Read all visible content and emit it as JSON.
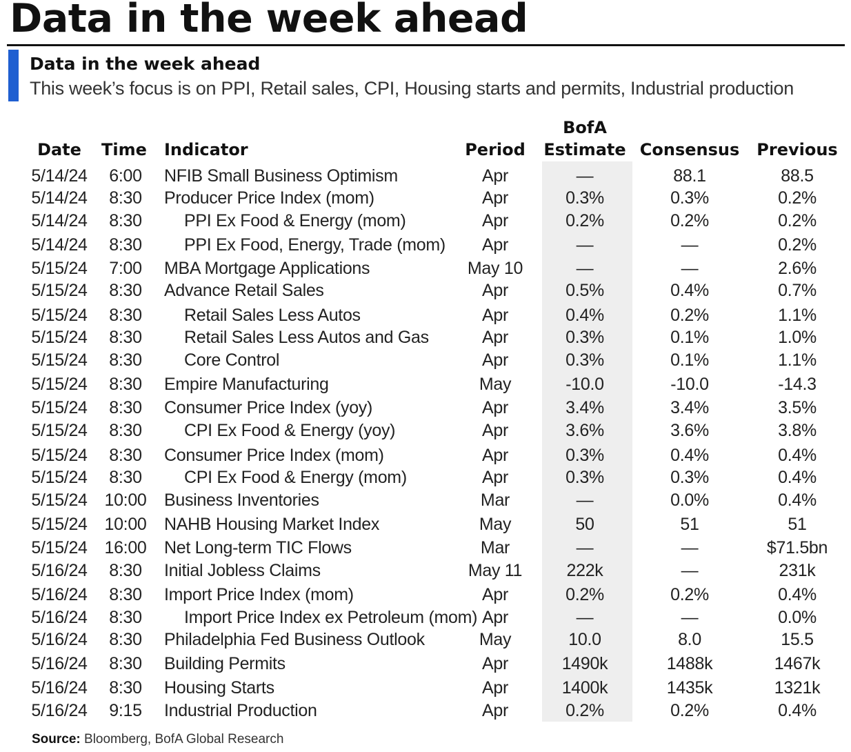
{
  "header": {
    "main_title": "Data in the week ahead",
    "sub_title": "Data in the week ahead",
    "description": "This week’s focus is on PPI, Retail sales, CPI, Housing starts and permits, Industrial production",
    "accent_color": "#1f5fd1"
  },
  "table": {
    "columns": {
      "date": "Date",
      "time": "Time",
      "indicator": "Indicator",
      "period": "Period",
      "bofa_top": "BofA",
      "bofa_bottom": "Estimate",
      "consensus": "Consensus",
      "previous": "Previous"
    },
    "rows": [
      {
        "date": "5/14/24",
        "time": "6:00",
        "indicator": "NFIB Small Business Optimism",
        "indent": false,
        "period": "Apr",
        "bofa": "—",
        "consensus": "88.1",
        "previous": "88.5"
      },
      {
        "date": "5/14/24",
        "time": "8:30",
        "indicator": "Producer Price Index (mom)",
        "indent": false,
        "period": "Apr",
        "bofa": "0.3%",
        "consensus": "0.3%",
        "previous": "0.2%"
      },
      {
        "date": "5/14/24",
        "time": "8:30",
        "indicator": "PPI Ex Food & Energy (mom)",
        "indent": true,
        "period": "Apr",
        "bofa": "0.2%",
        "consensus": "0.2%",
        "previous": "0.2%"
      },
      {
        "date": "5/14/24",
        "time": "8:30",
        "indicator": "PPI Ex Food, Energy, Trade (mom)",
        "indent": true,
        "period": "Apr",
        "bofa": "—",
        "consensus": "—",
        "previous": "0.2%"
      },
      {
        "date": "5/15/24",
        "time": "7:00",
        "indicator": "MBA Mortgage Applications",
        "indent": false,
        "period": "May 10",
        "bofa": "—",
        "consensus": "—",
        "previous": "2.6%"
      },
      {
        "date": "5/15/24",
        "time": "8:30",
        "indicator": "Advance Retail Sales",
        "indent": false,
        "period": "Apr",
        "bofa": "0.5%",
        "consensus": "0.4%",
        "previous": "0.7%"
      },
      {
        "date": "5/15/24",
        "time": "8:30",
        "indicator": "Retail Sales Less Autos",
        "indent": true,
        "period": "Apr",
        "bofa": "0.4%",
        "consensus": "0.2%",
        "previous": "1.1%"
      },
      {
        "date": "5/15/24",
        "time": "8:30",
        "indicator": "Retail Sales Less Autos and Gas",
        "indent": true,
        "period": "Apr",
        "bofa": "0.3%",
        "consensus": "0.1%",
        "previous": "1.0%"
      },
      {
        "date": "5/15/24",
        "time": "8:30",
        "indicator": "Core Control",
        "indent": true,
        "period": "Apr",
        "bofa": "0.3%",
        "consensus": "0.1%",
        "previous": "1.1%"
      },
      {
        "date": "5/15/24",
        "time": "8:30",
        "indicator": "Empire Manufacturing",
        "indent": false,
        "period": "May",
        "bofa": "-10.0",
        "consensus": "-10.0",
        "previous": "-14.3"
      },
      {
        "date": "5/15/24",
        "time": "8:30",
        "indicator": "Consumer Price Index (yoy)",
        "indent": false,
        "period": "Apr",
        "bofa": "3.4%",
        "consensus": "3.4%",
        "previous": "3.5%"
      },
      {
        "date": "5/15/24",
        "time": "8:30",
        "indicator": "CPI Ex Food & Energy (yoy)",
        "indent": true,
        "period": "Apr",
        "bofa": "3.6%",
        "consensus": "3.6%",
        "previous": "3.8%"
      },
      {
        "date": "5/15/24",
        "time": "8:30",
        "indicator": "Consumer Price Index (mom)",
        "indent": false,
        "period": "Apr",
        "bofa": "0.3%",
        "consensus": "0.4%",
        "previous": "0.4%"
      },
      {
        "date": "5/15/24",
        "time": "8:30",
        "indicator": "CPI Ex Food & Energy (mom)",
        "indent": true,
        "period": "Apr",
        "bofa": "0.3%",
        "consensus": "0.3%",
        "previous": "0.4%"
      },
      {
        "date": "5/15/24",
        "time": "10:00",
        "indicator": "Business Inventories",
        "indent": false,
        "period": "Mar",
        "bofa": "—",
        "consensus": "0.0%",
        "previous": "0.4%"
      },
      {
        "date": "5/15/24",
        "time": "10:00",
        "indicator": "NAHB Housing Market Index",
        "indent": false,
        "period": "May",
        "bofa": "50",
        "consensus": "51",
        "previous": "51"
      },
      {
        "date": "5/15/24",
        "time": "16:00",
        "indicator": "Net Long-term TIC Flows",
        "indent": false,
        "period": "Mar",
        "bofa": "—",
        "consensus": "—",
        "previous": "$71.5bn"
      },
      {
        "date": "5/16/24",
        "time": "8:30",
        "indicator": "Initial Jobless Claims",
        "indent": false,
        "period": "May 11",
        "bofa": "222k",
        "consensus": "—",
        "previous": "231k"
      },
      {
        "date": "5/16/24",
        "time": "8:30",
        "indicator": "Import Price Index (mom)",
        "indent": false,
        "period": "Apr",
        "bofa": "0.2%",
        "consensus": "0.2%",
        "previous": "0.4%"
      },
      {
        "date": "5/16/24",
        "time": "8:30",
        "indicator": "Import Price Index ex Petroleum (mom)",
        "indent": true,
        "period": "Apr",
        "bofa": "—",
        "consensus": "—",
        "previous": "0.0%"
      },
      {
        "date": "5/16/24",
        "time": "8:30",
        "indicator": "Philadelphia Fed Business Outlook",
        "indent": false,
        "period": "May",
        "bofa": "10.0",
        "consensus": "8.0",
        "previous": "15.5"
      },
      {
        "date": "5/16/24",
        "time": "8:30",
        "indicator": "Building Permits",
        "indent": false,
        "period": "Apr",
        "bofa": "1490k",
        "consensus": "1488k",
        "previous": "1467k"
      },
      {
        "date": "5/16/24",
        "time": "8:30",
        "indicator": "Housing Starts",
        "indent": false,
        "period": "Apr",
        "bofa": "1400k",
        "consensus": "1435k",
        "previous": "1321k"
      },
      {
        "date": "5/16/24",
        "time": "9:15",
        "indicator": "Industrial Production",
        "indent": false,
        "period": "Apr",
        "bofa": "0.2%",
        "consensus": "0.2%",
        "previous": "0.4%"
      }
    ]
  },
  "footer": {
    "source_label": "Source:",
    "source_text": "Bloomberg, BofA Global Research"
  }
}
